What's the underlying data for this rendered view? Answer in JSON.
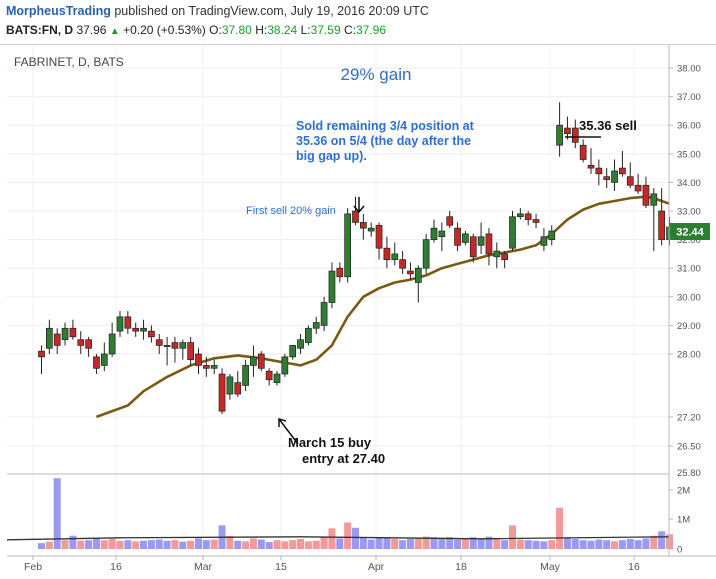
{
  "header": {
    "publisher": "MorpheusTrading",
    "published_text": "published on TradingView.com, July 19, 2016 20:09 UTC",
    "symbol": "BATS:FN, D",
    "last": "37.96",
    "change": "+0.20 (+0.53%)",
    "o_label": "O:",
    "o_value": "37.80",
    "h_label": "H:",
    "h_value": "38.24",
    "l_label": "L:",
    "l_value": "37.59",
    "c_label": "C:",
    "c_value": "37.96"
  },
  "chart_data": {
    "type": "candlestick",
    "title": "FABRINET, D, BATS",
    "price_axis": {
      "ylim": [
        25.8,
        38.3
      ],
      "ticks": [
        "38.00",
        "37.00",
        "36.00",
        "35.00",
        "34.00",
        "33.00",
        "32.00",
        "31.00",
        "30.00",
        "29.00",
        "28.00",
        "27.20",
        "26.50",
        "25.80"
      ],
      "last_price_tag": "32.44"
    },
    "volume_axis": {
      "ticks": [
        "2M",
        "1M",
        "0"
      ],
      "ylim": [
        0,
        2500000
      ]
    },
    "x_axis": {
      "ticks": [
        "Feb",
        "16",
        "Mar",
        "15",
        "Apr",
        "18",
        "May",
        "16"
      ]
    },
    "candles": [
      [
        28.1,
        28.3,
        27.3,
        27.9
      ],
      [
        28.2,
        29.2,
        28.0,
        28.9
      ],
      [
        28.7,
        28.9,
        28.0,
        28.3
      ],
      [
        28.5,
        29.1,
        28.3,
        28.9
      ],
      [
        28.9,
        29.2,
        28.5,
        28.6
      ],
      [
        28.5,
        28.8,
        28.0,
        28.3
      ],
      [
        28.5,
        28.6,
        27.9,
        28.2
      ],
      [
        27.9,
        28.0,
        27.3,
        27.5
      ],
      [
        27.6,
        28.4,
        27.4,
        28.0
      ],
      [
        28.0,
        29.1,
        27.9,
        28.7
      ],
      [
        28.8,
        29.5,
        28.6,
        29.3
      ],
      [
        29.3,
        29.5,
        28.7,
        28.9
      ],
      [
        28.9,
        29.1,
        28.6,
        28.8
      ],
      [
        28.8,
        29.2,
        28.5,
        28.9
      ],
      [
        28.8,
        29.0,
        28.4,
        28.6
      ],
      [
        28.5,
        28.7,
        28.0,
        28.3
      ],
      [
        28.3,
        28.6,
        27.6,
        28.3
      ],
      [
        28.4,
        28.6,
        27.7,
        28.2
      ],
      [
        28.2,
        28.5,
        27.8,
        28.4
      ],
      [
        28.4,
        28.6,
        27.6,
        27.8
      ],
      [
        28.0,
        28.2,
        27.3,
        27.6
      ],
      [
        27.6,
        27.9,
        27.2,
        27.5
      ],
      [
        27.5,
        27.8,
        27.3,
        27.6
      ],
      [
        27.3,
        27.5,
        25.9,
        26.0
      ],
      [
        26.6,
        27.3,
        26.4,
        27.2
      ],
      [
        27.0,
        27.4,
        26.5,
        26.6
      ],
      [
        26.9,
        27.8,
        26.7,
        27.6
      ],
      [
        27.6,
        28.3,
        27.2,
        27.9
      ],
      [
        28.0,
        28.1,
        27.4,
        27.5
      ],
      [
        27.4,
        27.5,
        26.9,
        27.1
      ],
      [
        27.0,
        27.4,
        26.9,
        27.3
      ],
      [
        27.3,
        28.0,
        27.2,
        27.9
      ],
      [
        27.9,
        28.3,
        27.8,
        28.3
      ],
      [
        28.2,
        28.7,
        28.0,
        28.5
      ],
      [
        28.4,
        29.0,
        28.3,
        28.9
      ],
      [
        28.9,
        29.3,
        28.7,
        29.1
      ],
      [
        29.0,
        30.0,
        28.8,
        29.8
      ],
      [
        29.8,
        31.2,
        29.6,
        30.9
      ],
      [
        31.0,
        31.2,
        30.5,
        30.7
      ],
      [
        30.7,
        33.1,
        30.5,
        32.9
      ],
      [
        33.0,
        33.5,
        32.5,
        32.6
      ],
      [
        32.6,
        32.9,
        32.0,
        32.4
      ],
      [
        32.3,
        32.6,
        32.1,
        32.4
      ],
      [
        32.5,
        32.6,
        31.3,
        31.7
      ],
      [
        31.7,
        32.1,
        31.0,
        31.3
      ],
      [
        31.3,
        31.9,
        31.1,
        31.5
      ],
      [
        31.3,
        31.6,
        30.8,
        31.0
      ],
      [
        30.9,
        31.2,
        30.6,
        30.8
      ],
      [
        30.5,
        31.1,
        29.8,
        31.0
      ],
      [
        31.0,
        32.2,
        30.8,
        32.0
      ],
      [
        32.0,
        32.7,
        31.9,
        32.4
      ],
      [
        32.1,
        32.6,
        31.6,
        32.3
      ],
      [
        32.8,
        33.0,
        32.4,
        32.5
      ],
      [
        32.4,
        32.6,
        31.6,
        31.8
      ],
      [
        31.9,
        32.3,
        31.8,
        32.2
      ],
      [
        32.1,
        32.2,
        31.2,
        31.4
      ],
      [
        31.8,
        32.6,
        31.5,
        32.1
      ],
      [
        32.2,
        32.4,
        31.1,
        31.5
      ],
      [
        31.4,
        31.9,
        31.0,
        31.6
      ],
      [
        31.5,
        31.6,
        31.0,
        31.3
      ],
      [
        31.7,
        33.0,
        31.6,
        32.8
      ],
      [
        32.8,
        33.1,
        32.7,
        32.9
      ],
      [
        32.9,
        33.0,
        32.5,
        32.7
      ],
      [
        32.7,
        32.9,
        32.4,
        32.6
      ],
      [
        31.8,
        32.4,
        31.6,
        32.1
      ],
      [
        32.0,
        32.5,
        31.8,
        32.3
      ],
      [
        35.3,
        36.8,
        34.9,
        36.0
      ],
      [
        35.9,
        36.3,
        35.5,
        35.7
      ],
      [
        35.9,
        36.2,
        35.2,
        35.4
      ],
      [
        35.3,
        35.5,
        34.7,
        34.8
      ],
      [
        34.6,
        35.2,
        34.3,
        34.5
      ],
      [
        34.5,
        34.8,
        33.9,
        34.3
      ],
      [
        34.2,
        34.5,
        33.8,
        34.1
      ],
      [
        34.0,
        34.8,
        33.7,
        34.4
      ],
      [
        34.5,
        35.1,
        34.2,
        34.3
      ],
      [
        34.2,
        34.7,
        33.8,
        33.9
      ],
      [
        33.9,
        34.3,
        33.6,
        33.7
      ],
      [
        33.9,
        34.2,
        33.1,
        33.2
      ],
      [
        33.2,
        33.8,
        31.6,
        33.6
      ],
      [
        33.0,
        33.8,
        31.8,
        32.0
      ],
      [
        32.0,
        32.8,
        31.8,
        32.44
      ]
    ],
    "ma_curve": [
      [
        7,
        25.8
      ],
      [
        11,
        26.2
      ],
      [
        13,
        26.7
      ],
      [
        16,
        27.2
      ],
      [
        19,
        27.6
      ],
      [
        22,
        27.85
      ],
      [
        25,
        27.95
      ],
      [
        28,
        27.85
      ],
      [
        31,
        27.7
      ],
      [
        33,
        27.6
      ],
      [
        35,
        27.8
      ],
      [
        37,
        28.3
      ],
      [
        39,
        29.3
      ],
      [
        41,
        30.0
      ],
      [
        43,
        30.3
      ],
      [
        45,
        30.5
      ],
      [
        47,
        30.6
      ],
      [
        49,
        30.75
      ],
      [
        51,
        31.0
      ],
      [
        53,
        31.15
      ],
      [
        55,
        31.3
      ],
      [
        57,
        31.45
      ],
      [
        59,
        31.55
      ],
      [
        61,
        31.65
      ],
      [
        63,
        31.8
      ],
      [
        65,
        32.2
      ],
      [
        67,
        32.7
      ],
      [
        69,
        33.05
      ],
      [
        71,
        33.25
      ],
      [
        73,
        33.35
      ],
      [
        75,
        33.45
      ],
      [
        77,
        33.5
      ],
      [
        78,
        33.45
      ],
      [
        80,
        33.25
      ]
    ],
    "volume": [
      [
        0.2,
        1
      ],
      [
        0.25,
        0
      ],
      [
        2.4,
        1
      ],
      [
        0.3,
        0
      ],
      [
        0.45,
        1
      ],
      [
        0.28,
        0
      ],
      [
        0.3,
        1
      ],
      [
        0.35,
        1
      ],
      [
        0.3,
        0
      ],
      [
        0.34,
        0
      ],
      [
        0.28,
        0
      ],
      [
        0.3,
        1
      ],
      [
        0.26,
        0
      ],
      [
        0.28,
        1
      ],
      [
        0.3,
        1
      ],
      [
        0.32,
        1
      ],
      [
        0.28,
        1
      ],
      [
        0.3,
        0
      ],
      [
        0.25,
        1
      ],
      [
        0.28,
        0
      ],
      [
        0.36,
        1
      ],
      [
        0.3,
        1
      ],
      [
        0.32,
        0
      ],
      [
        0.8,
        1
      ],
      [
        0.44,
        0
      ],
      [
        0.28,
        1
      ],
      [
        0.26,
        0
      ],
      [
        0.36,
        0
      ],
      [
        0.32,
        1
      ],
      [
        0.24,
        1
      ],
      [
        0.3,
        0
      ],
      [
        0.26,
        0
      ],
      [
        0.3,
        0
      ],
      [
        0.34,
        0
      ],
      [
        0.26,
        0
      ],
      [
        0.28,
        0
      ],
      [
        0.4,
        0
      ],
      [
        0.7,
        0
      ],
      [
        0.36,
        1
      ],
      [
        0.9,
        0
      ],
      [
        0.72,
        1
      ],
      [
        0.4,
        1
      ],
      [
        0.32,
        1
      ],
      [
        0.4,
        1
      ],
      [
        0.36,
        1
      ],
      [
        0.34,
        0
      ],
      [
        0.3,
        1
      ],
      [
        0.34,
        1
      ],
      [
        0.38,
        0
      ],
      [
        0.42,
        0
      ],
      [
        0.4,
        1
      ],
      [
        0.36,
        1
      ],
      [
        0.4,
        1
      ],
      [
        0.32,
        1
      ],
      [
        0.34,
        0
      ],
      [
        0.4,
        1
      ],
      [
        0.36,
        1
      ],
      [
        0.42,
        1
      ],
      [
        0.34,
        0
      ],
      [
        0.3,
        1
      ],
      [
        0.8,
        0
      ],
      [
        0.32,
        0
      ],
      [
        0.3,
        1
      ],
      [
        0.28,
        1
      ],
      [
        0.26,
        1
      ],
      [
        0.3,
        0
      ],
      [
        1.4,
        0
      ],
      [
        0.4,
        1
      ],
      [
        0.34,
        1
      ],
      [
        0.3,
        1
      ],
      [
        0.28,
        1
      ],
      [
        0.32,
        1
      ],
      [
        0.3,
        1
      ],
      [
        0.26,
        0
      ],
      [
        0.3,
        1
      ],
      [
        0.34,
        1
      ],
      [
        0.3,
        1
      ],
      [
        0.36,
        1
      ],
      [
        0.45,
        0
      ],
      [
        0.6,
        1
      ],
      [
        0.5,
        0
      ]
    ],
    "volume_ma": 0.38,
    "annotations": {
      "gain_title": "29% gain",
      "sold_note": "Sold remaining 3/4 position at 35.36 on 5/4 (the day after the big gap up).",
      "sold_line1": "Sold remaining 3/4 position at",
      "sold_line2": "35.36 on 5/4 (the day after the",
      "sold_line3": "big gap up).",
      "sell_level_label": "35.36 sell",
      "first_sell_label": "First sell 20% gain",
      "buy_line1": "March  15 buy",
      "buy_line2": "entry at 27.40"
    },
    "colors": {
      "up": "#2e7d32",
      "down": "#c62828",
      "ma": "#7a5a12",
      "vol_up": "#9a9af2",
      "vol_down": "#f29a9a",
      "title_blue": "#2f6fd0",
      "price_tag": "#2e7d32"
    }
  }
}
